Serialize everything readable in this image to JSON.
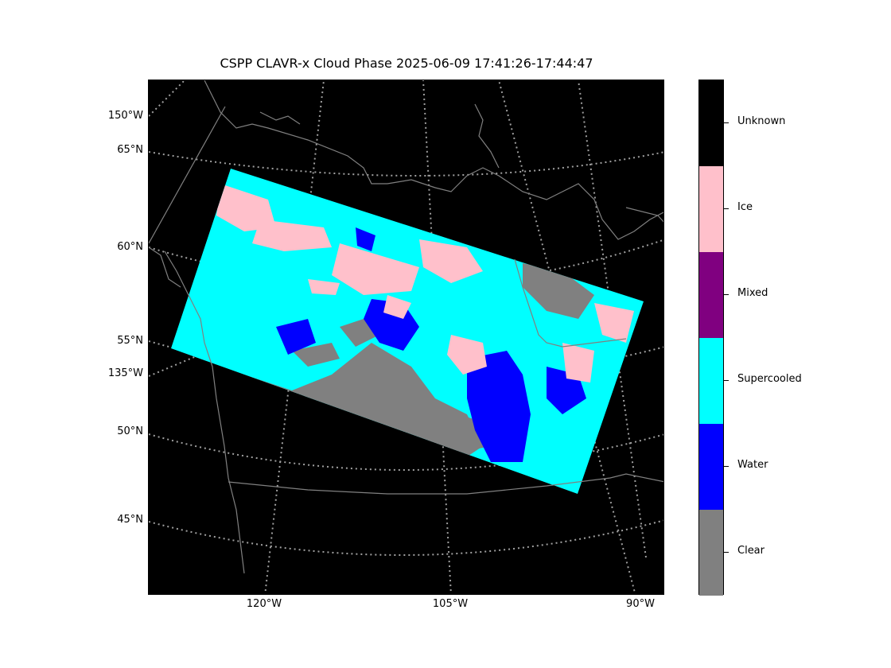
{
  "title": "CSPP CLAVR-x Cloud Phase 2025-06-09 17:41:26-17:44:47",
  "lat_labels": [
    "150°W",
    "65°N",
    "60°N",
    "55°N",
    "135°W",
    "50°N",
    "45°N"
  ],
  "lon_labels": [
    "120°W",
    "105°W",
    "90°W"
  ],
  "legend": {
    "categories": [
      {
        "label": "Unknown",
        "color": "#000000"
      },
      {
        "label": "Ice",
        "color": "#ffc0cb"
      },
      {
        "label": "Mixed",
        "color": "#800080"
      },
      {
        "label": "Supercooled",
        "color": "#00ffff"
      },
      {
        "label": "Water",
        "color": "#0000ff"
      },
      {
        "label": "Clear",
        "color": "#808080"
      }
    ]
  },
  "colors": {
    "background": "#000000",
    "graticule": "#a0a0a0",
    "coastline": "#808080"
  }
}
